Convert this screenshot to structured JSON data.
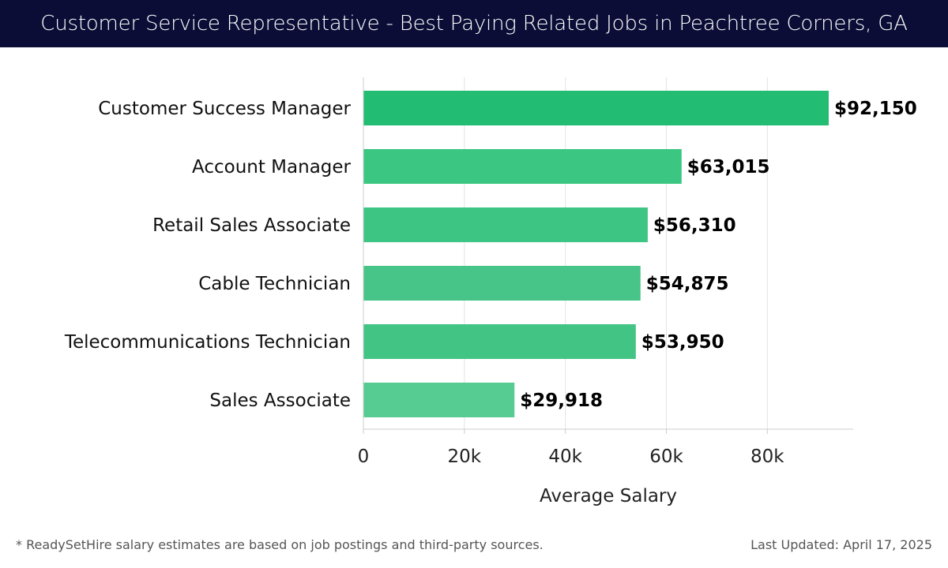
{
  "header": {
    "title": "Customer Service Representative - Best Paying Related Jobs in Peachtree Corners, GA"
  },
  "chart_data": {
    "type": "bar",
    "orientation": "horizontal",
    "categories": [
      "Customer Success Manager",
      "Account Manager",
      "Retail Sales Associate",
      "Cable Technician",
      "Telecommunications Technician",
      "Sales Associate"
    ],
    "values": [
      92150,
      63015,
      56310,
      54875,
      53950,
      29918
    ],
    "value_labels": [
      "$92,150",
      "$63,015",
      "$56,310",
      "$54,875",
      "$53,950",
      "$29,918"
    ],
    "xlabel": "Average Salary",
    "ylabel": "",
    "xlim": [
      0,
      97000
    ],
    "x_ticks": [
      0,
      20000,
      40000,
      60000,
      80000
    ],
    "x_tick_labels": [
      "0",
      "20k",
      "40k",
      "60k",
      "80k"
    ],
    "grid": "vertical",
    "bar_colors": [
      "#22bd73",
      "#3bc682",
      "#3dc583",
      "#47c487",
      "#42c485",
      "#56cc92"
    ]
  },
  "footer": {
    "note": "* ReadySetHire salary estimates are based on job postings and third-party sources.",
    "updated": "Last Updated: April 17, 2025"
  }
}
